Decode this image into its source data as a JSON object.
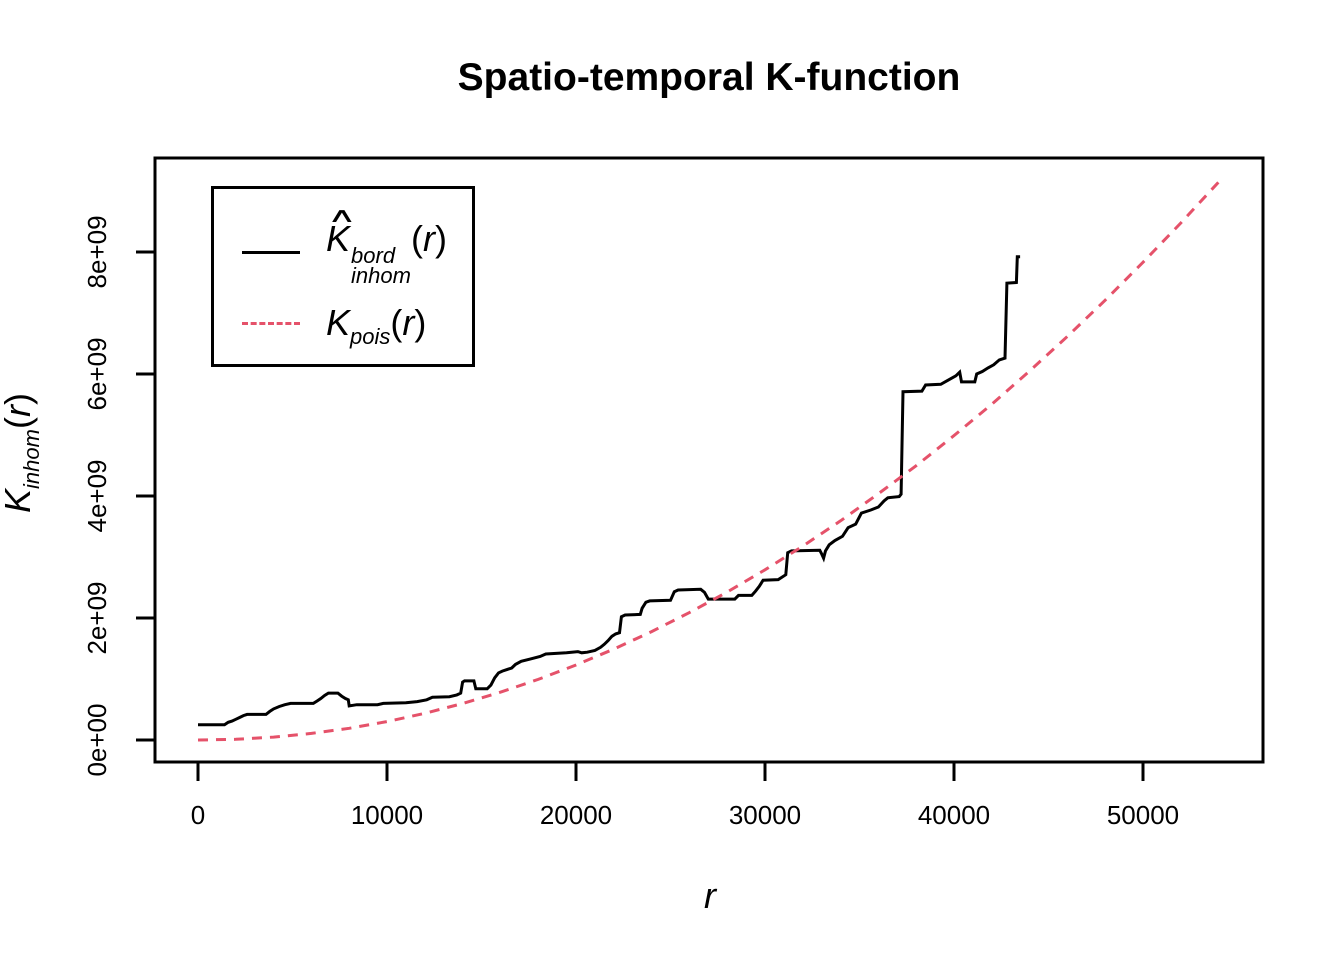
{
  "chart_data": {
    "type": "line",
    "title": "Spatio-temporal K-function",
    "xlabel": "r",
    "ylabel_parts": {
      "main": "K",
      "sub": "inhom",
      "open": "(",
      "var": "r",
      "close": ")"
    },
    "axes": {
      "xlim": [
        -2275,
        56350
      ],
      "ylim_e9": [
        -0.36,
        9.54
      ],
      "x_ticks": [
        {
          "label": "0",
          "value": 0
        },
        {
          "label": "10000",
          "value": 10000
        },
        {
          "label": "20000",
          "value": 20000
        },
        {
          "label": "30000",
          "value": 30000
        },
        {
          "label": "40000",
          "value": 40000
        },
        {
          "label": "50000",
          "value": 50000
        }
      ],
      "y_ticks": [
        {
          "label": "0e+00",
          "value_e9": 0
        },
        {
          "label": "2e+09",
          "value_e9": 2
        },
        {
          "label": "4e+09",
          "value_e9": 4
        },
        {
          "label": "6e+09",
          "value_e9": 6
        },
        {
          "label": "8e+09",
          "value_e9": 8
        }
      ],
      "grid": false
    },
    "units_note": "K values stored in units of 1e9",
    "legend": {
      "position": "top-left",
      "entries": [
        {
          "hat": "∧",
          "main": "K",
          "sup": "bord",
          "sub": "inhom",
          "open": "(",
          "var": "r",
          "close": ")",
          "line": "solid",
          "color": "#000000"
        },
        {
          "main": "K",
          "sub": "pois",
          "open": "(",
          "var": "r",
          "close": ")",
          "line": "dashed",
          "color": "#e5526a"
        }
      ]
    },
    "series": [
      {
        "name": "K_inhom_bord_empirical",
        "style": "solid",
        "color": "#000000",
        "points_r_Ke9": [
          [
            0,
            0.25
          ],
          [
            1400,
            0.25
          ],
          [
            1600,
            0.29
          ],
          [
            1800,
            0.31
          ],
          [
            2000,
            0.34
          ],
          [
            2200,
            0.37
          ],
          [
            2400,
            0.4
          ],
          [
            2600,
            0.42
          ],
          [
            3600,
            0.42
          ],
          [
            3800,
            0.47
          ],
          [
            4000,
            0.51
          ],
          [
            4300,
            0.55
          ],
          [
            4600,
            0.58
          ],
          [
            4900,
            0.6
          ],
          [
            6100,
            0.6
          ],
          [
            6300,
            0.64
          ],
          [
            6500,
            0.68
          ],
          [
            6700,
            0.73
          ],
          [
            6900,
            0.77
          ],
          [
            7400,
            0.77
          ],
          [
            7600,
            0.72
          ],
          [
            7800,
            0.68
          ],
          [
            7950,
            0.66
          ],
          [
            8000,
            0.56
          ],
          [
            8200,
            0.57
          ],
          [
            8400,
            0.58
          ],
          [
            9500,
            0.58
          ],
          [
            9800,
            0.6
          ],
          [
            11000,
            0.61
          ],
          [
            11600,
            0.63
          ],
          [
            12100,
            0.66
          ],
          [
            12400,
            0.7
          ],
          [
            13300,
            0.71
          ],
          [
            13700,
            0.74
          ],
          [
            13900,
            0.77
          ],
          [
            14000,
            0.95
          ],
          [
            14100,
            0.97
          ],
          [
            14600,
            0.97
          ],
          [
            14700,
            0.84
          ],
          [
            15300,
            0.84
          ],
          [
            15500,
            0.9
          ],
          [
            15700,
            1.02
          ],
          [
            15900,
            1.1
          ],
          [
            16100,
            1.13
          ],
          [
            16600,
            1.18
          ],
          [
            16800,
            1.24
          ],
          [
            17100,
            1.29
          ],
          [
            17600,
            1.33
          ],
          [
            18100,
            1.37
          ],
          [
            18400,
            1.41
          ],
          [
            19500,
            1.43
          ],
          [
            20100,
            1.45
          ],
          [
            20300,
            1.43
          ],
          [
            20600,
            1.44
          ],
          [
            21000,
            1.47
          ],
          [
            21300,
            1.52
          ],
          [
            21500,
            1.57
          ],
          [
            21700,
            1.63
          ],
          [
            21900,
            1.7
          ],
          [
            22100,
            1.74
          ],
          [
            22300,
            1.76
          ],
          [
            22400,
            2.02
          ],
          [
            22600,
            2.05
          ],
          [
            23400,
            2.06
          ],
          [
            23500,
            2.16
          ],
          [
            23700,
            2.26
          ],
          [
            23900,
            2.28
          ],
          [
            25000,
            2.29
          ],
          [
            25200,
            2.43
          ],
          [
            25400,
            2.46
          ],
          [
            26600,
            2.47
          ],
          [
            26800,
            2.42
          ],
          [
            27000,
            2.31
          ],
          [
            28400,
            2.31
          ],
          [
            28600,
            2.37
          ],
          [
            29300,
            2.37
          ],
          [
            29500,
            2.44
          ],
          [
            29700,
            2.52
          ],
          [
            29900,
            2.62
          ],
          [
            30700,
            2.63
          ],
          [
            31100,
            2.71
          ],
          [
            31200,
            3.07
          ],
          [
            31400,
            3.1
          ],
          [
            32900,
            3.11
          ],
          [
            33000,
            3.05
          ],
          [
            33100,
            2.98
          ],
          [
            33200,
            3.1
          ],
          [
            33400,
            3.2
          ],
          [
            33700,
            3.27
          ],
          [
            34100,
            3.34
          ],
          [
            34400,
            3.48
          ],
          [
            34800,
            3.54
          ],
          [
            35100,
            3.72
          ],
          [
            35600,
            3.77
          ],
          [
            36000,
            3.82
          ],
          [
            36300,
            3.92
          ],
          [
            36500,
            3.97
          ],
          [
            37100,
            3.99
          ],
          [
            37200,
            4.03
          ],
          [
            37300,
            5.71
          ],
          [
            38300,
            5.72
          ],
          [
            38500,
            5.82
          ],
          [
            39300,
            5.83
          ],
          [
            39700,
            5.9
          ],
          [
            40100,
            5.97
          ],
          [
            40300,
            6.03
          ],
          [
            40400,
            5.87
          ],
          [
            41100,
            5.87
          ],
          [
            41200,
            6.0
          ],
          [
            41500,
            6.04
          ],
          [
            41800,
            6.1
          ],
          [
            42100,
            6.15
          ],
          [
            42400,
            6.23
          ],
          [
            42700,
            6.26
          ],
          [
            42800,
            7.49
          ],
          [
            43300,
            7.5
          ],
          [
            43350,
            7.92
          ],
          [
            43500,
            7.92
          ]
        ]
      },
      {
        "name": "K_pois_theoretical",
        "style": "dashed",
        "color": "#e5526a",
        "points_r_Ke9": [
          [
            0,
            0
          ],
          [
            2000,
            0.012
          ],
          [
            4000,
            0.048
          ],
          [
            6000,
            0.108
          ],
          [
            8000,
            0.193
          ],
          [
            10000,
            0.303
          ],
          [
            12000,
            0.439
          ],
          [
            14000,
            0.599
          ],
          [
            16000,
            0.784
          ],
          [
            18000,
            0.994
          ],
          [
            20000,
            1.23
          ],
          [
            22000,
            1.491
          ],
          [
            24000,
            1.778
          ],
          [
            26000,
            2.089
          ],
          [
            28000,
            2.426
          ],
          [
            30000,
            2.79
          ],
          [
            32000,
            3.178
          ],
          [
            34000,
            3.593
          ],
          [
            36000,
            4.037
          ],
          [
            38000,
            4.496
          ],
          [
            40000,
            4.99
          ],
          [
            42000,
            5.505
          ],
          [
            44000,
            6.048
          ],
          [
            46000,
            6.616
          ],
          [
            48000,
            7.21
          ],
          [
            50000,
            7.83
          ],
          [
            52000,
            8.475
          ],
          [
            54100,
            9.18
          ]
        ]
      }
    ]
  }
}
